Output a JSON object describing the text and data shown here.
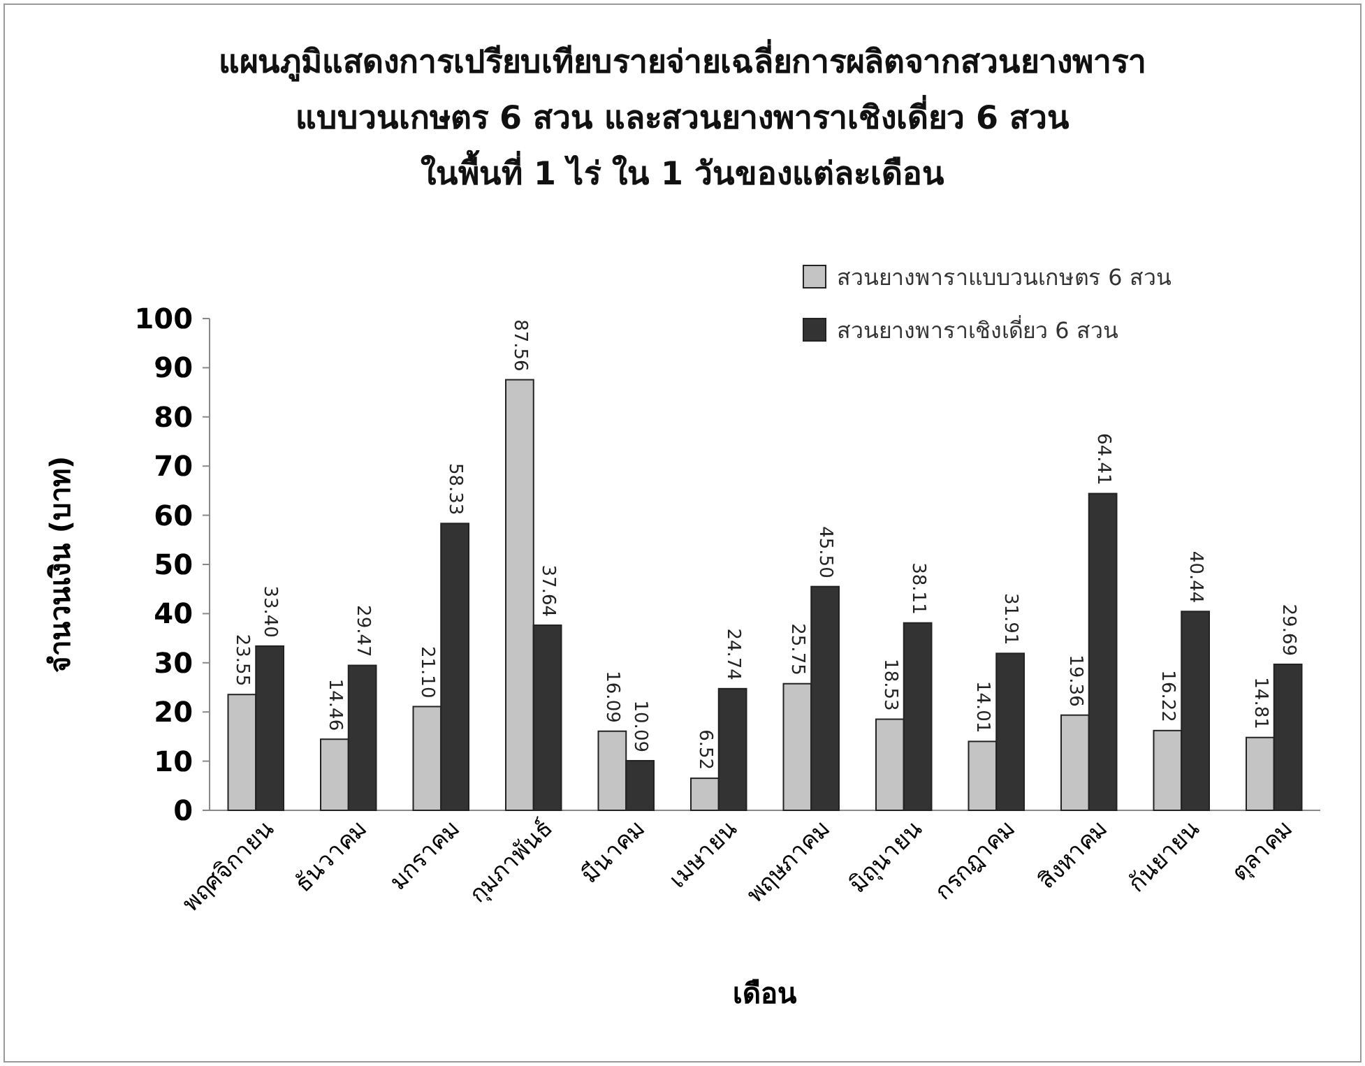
{
  "chart_data": {
    "type": "bar",
    "title": "แผนภูมิแสดงการเปรียบเทียบรายจ่ายเฉลี่ยการผลิตจากสวนยางพารา\nแบบวนเกษตร 6 สวน และสวนยางพาราเชิงเดี่ยว 6 สวน\nในพื้นที่ 1 ไร่ ใน 1 วันของแต่ละเดือน",
    "xlabel": "เดือน",
    "ylabel": "จำนวนเงิน (บาท)",
    "categories": [
      "พฤศจิกายน",
      "ธันวาคม",
      "มกราคม",
      "กุมภาพันธ์",
      "มีนาคม",
      "เมษายน",
      "พฤษภาคม",
      "มิถุนายน",
      "กรกฎาคม",
      "สิงหาคม",
      "กันยายน",
      "ตุลาคม"
    ],
    "series": [
      {
        "name": "สวนยางพาราแบบวนเกษตร 6 สวน",
        "color": "#c4c4c4",
        "values": [
          23.55,
          14.46,
          21.1,
          87.56,
          16.09,
          6.52,
          25.75,
          18.53,
          14.01,
          19.36,
          16.22,
          14.81
        ],
        "value_labels": [
          "23.55",
          "14.46",
          "21.10",
          "87.56",
          "16.09",
          "6.52",
          "25.75",
          "18.53",
          "14.01",
          "19.36",
          "16.22",
          "14.81"
        ]
      },
      {
        "name": "สวนยางพาราเชิงเดี่ยว 6 สวน",
        "color": "#333333",
        "values": [
          33.4,
          29.47,
          58.33,
          37.64,
          10.09,
          24.74,
          45.5,
          38.11,
          31.91,
          64.41,
          40.44,
          29.69
        ],
        "value_labels": [
          "33.40",
          "29.47",
          "58.33",
          "37.64",
          "10.09",
          "24.74",
          "45.50",
          "38.11",
          "31.91",
          "64.41",
          "40.44",
          "29.69"
        ]
      }
    ],
    "ylim": [
      0,
      100
    ],
    "yticks": [
      0,
      10,
      20,
      30,
      40,
      50,
      60,
      70,
      80,
      90,
      100
    ],
    "grid": false,
    "legend": "top right"
  }
}
